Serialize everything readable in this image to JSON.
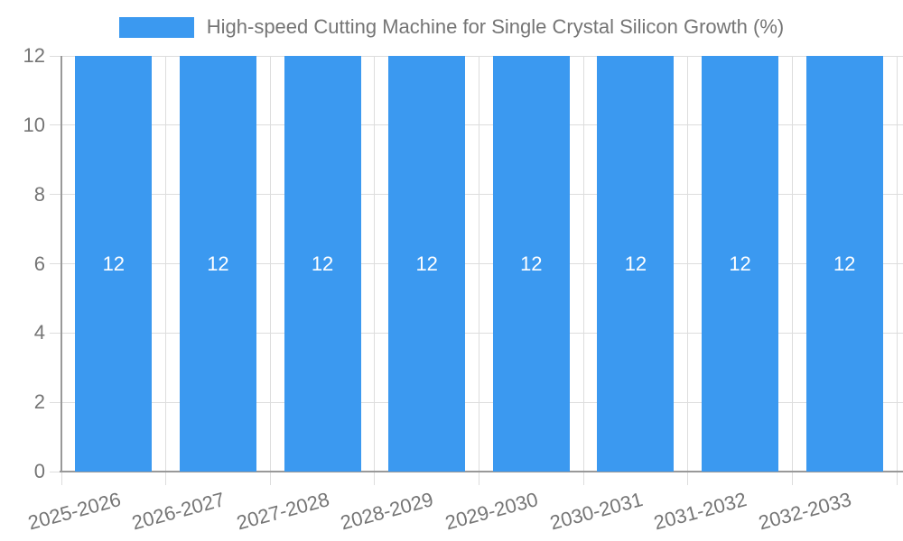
{
  "chart_data": {
    "type": "bar",
    "title": "High-speed Cutting Machine for Single Crystal Silicon Growth (%)",
    "categories": [
      "2025-2026",
      "2026-2027",
      "2027-2028",
      "2028-2029",
      "2029-2030",
      "2030-2031",
      "2031-2032",
      "2032-2033"
    ],
    "values": [
      12,
      12,
      12,
      12,
      12,
      12,
      12,
      12
    ],
    "xlabel": "",
    "ylabel": "",
    "ylim": [
      0,
      12
    ],
    "yticks": [
      0,
      2,
      4,
      6,
      8,
      10,
      12
    ],
    "grid": true,
    "legend_position": "top-center",
    "colors": {
      "bar": "#3B99F0",
      "grid": "#DDDDDD",
      "axis": "#999999",
      "text": "#757575",
      "value_label": "#FFFFFF",
      "background": "#FFFFFF"
    }
  }
}
